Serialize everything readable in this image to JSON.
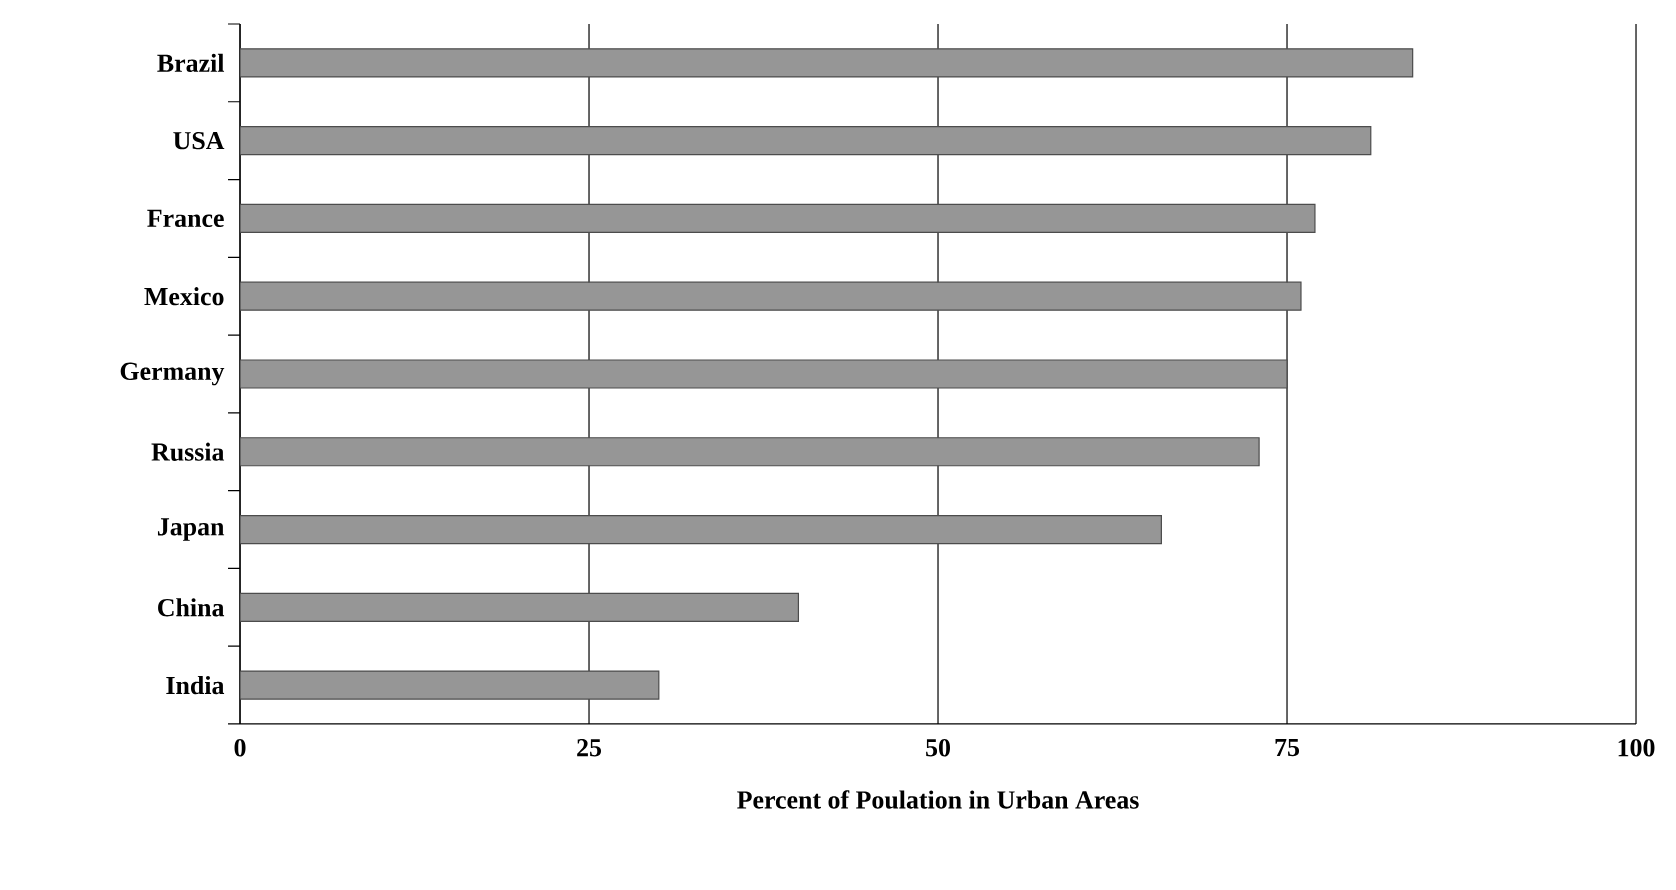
{
  "chart_data": {
    "type": "bar",
    "orientation": "horizontal",
    "xlabel": "Percent of Poulation in Urban Areas",
    "categories": [
      "Brazil",
      "USA",
      "France",
      "Mexico",
      "Germany",
      "Russia",
      "Japan",
      "China",
      "India"
    ],
    "values": [
      84,
      81,
      77,
      76,
      75,
      73,
      66,
      40,
      30
    ],
    "color": "#969696",
    "xlim": [
      0,
      100
    ],
    "xticks": [
      0,
      25,
      50,
      75,
      100
    ],
    "grid": "x"
  }
}
